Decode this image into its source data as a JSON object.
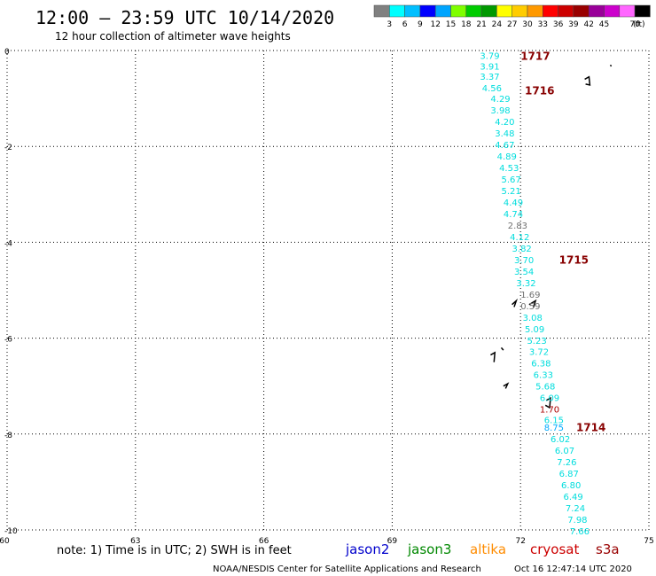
{
  "header": {
    "title": "12:00 – 23:59 UTC 10/14/2020",
    "subtitle": "12 hour collection of altimeter wave heights"
  },
  "legend": {
    "colors": [
      "#808080",
      "#00ffff",
      "#00bfff",
      "#0000ff",
      "#00a5ff",
      "#7fff00",
      "#00cc00",
      "#009900",
      "#ffff00",
      "#ffcc00",
      "#ff9900",
      "#ff0000",
      "#cc0000",
      "#990000",
      "#990099",
      "#cc00cc",
      "#ff66ff",
      "#000000"
    ],
    "labels": [
      "3",
      "6",
      "9",
      "12",
      "15",
      "18",
      "21",
      "24",
      "27",
      "30",
      "33",
      "36",
      "39",
      "42",
      "45",
      "70"
    ],
    "unit": "(ft)"
  },
  "footer": {
    "note": "note: 1) Time is in UTC; 2) SWH is in feet",
    "credit": "NOAA/NESDIS Center for Satellite Applications and Research",
    "timestamp": "Oct 16 12:47:14 UTC 2020",
    "satellites": [
      {
        "name": "jason2",
        "color": "#0000cc"
      },
      {
        "name": "jason3",
        "color": "#008800"
      },
      {
        "name": "altika",
        "color": "#ff8c00"
      },
      {
        "name": "cryosat",
        "color": "#cc0000"
      },
      {
        "name": "s3a",
        "color": "#990000"
      }
    ]
  },
  "chart_data": {
    "type": "scatter",
    "title": "",
    "xlabel": "",
    "ylabel": "",
    "xlim": [
      60,
      75
    ],
    "ylim": [
      -10,
      0
    ],
    "xticks": [
      60,
      63,
      66,
      69,
      72,
      75
    ],
    "yticks": [
      0,
      -2,
      -4,
      -6,
      -8,
      -10
    ],
    "grid": true,
    "time_labels": [
      {
        "text": "1717",
        "x": 72.0,
        "y": -0.1
      },
      {
        "text": "1716",
        "x": 72.1,
        "y": -0.82
      },
      {
        "text": "1715",
        "x": 72.9,
        "y": -4.35
      },
      {
        "text": "1714",
        "x": 73.3,
        "y": -7.85
      }
    ],
    "points": [
      {
        "x": 71.05,
        "y": -0.1,
        "v": "3.79",
        "c": "#00dddd"
      },
      {
        "x": 71.05,
        "y": -0.32,
        "v": "3.91",
        "c": "#00dddd"
      },
      {
        "x": 71.05,
        "y": -0.54,
        "v": "3.37",
        "c": "#00dddd"
      },
      {
        "x": 71.1,
        "y": -0.78,
        "v": "4.56",
        "c": "#00dddd"
      },
      {
        "x": 71.3,
        "y": -1.0,
        "v": "4.29",
        "c": "#00dddd"
      },
      {
        "x": 71.3,
        "y": -1.24,
        "v": "3.98",
        "c": "#00dddd"
      },
      {
        "x": 71.4,
        "y": -1.48,
        "v": "4.20",
        "c": "#00dddd"
      },
      {
        "x": 71.4,
        "y": -1.72,
        "v": "3.48",
        "c": "#00dddd"
      },
      {
        "x": 71.4,
        "y": -1.96,
        "v": "4.67",
        "c": "#00dddd"
      },
      {
        "x": 71.45,
        "y": -2.2,
        "v": "4.89",
        "c": "#00dddd"
      },
      {
        "x": 71.5,
        "y": -2.44,
        "v": "4.53",
        "c": "#00dddd"
      },
      {
        "x": 71.55,
        "y": -2.68,
        "v": "5.67",
        "c": "#00dddd"
      },
      {
        "x": 71.55,
        "y": -2.92,
        "v": "5.21",
        "c": "#00dddd"
      },
      {
        "x": 71.6,
        "y": -3.16,
        "v": "4.49",
        "c": "#00dddd"
      },
      {
        "x": 71.6,
        "y": -3.4,
        "v": "4.74",
        "c": "#00dddd"
      },
      {
        "x": 71.7,
        "y": -3.64,
        "v": "2.83",
        "c": "#707070"
      },
      {
        "x": 71.75,
        "y": -3.88,
        "v": "4.12",
        "c": "#00dddd"
      },
      {
        "x": 71.8,
        "y": -4.12,
        "v": "3.82",
        "c": "#00dddd"
      },
      {
        "x": 71.85,
        "y": -4.36,
        "v": "3.70",
        "c": "#00dddd"
      },
      {
        "x": 71.85,
        "y": -4.6,
        "v": "3.54",
        "c": "#00dddd"
      },
      {
        "x": 71.9,
        "y": -4.84,
        "v": "3.32",
        "c": "#00dddd"
      },
      {
        "x": 72.0,
        "y": -5.08,
        "v": "1.69",
        "c": "#707070"
      },
      {
        "x": 72.0,
        "y": -5.32,
        "v": "0.59",
        "c": "#707070"
      },
      {
        "x": 72.05,
        "y": -5.56,
        "v": "3.08",
        "c": "#00dddd"
      },
      {
        "x": 72.1,
        "y": -5.8,
        "v": "5.09",
        "c": "#00dddd"
      },
      {
        "x": 72.15,
        "y": -6.04,
        "v": "5.23",
        "c": "#00dddd"
      },
      {
        "x": 72.2,
        "y": -6.28,
        "v": "3.72",
        "c": "#00dddd"
      },
      {
        "x": 72.25,
        "y": -6.52,
        "v": "6.38",
        "c": "#00dddd"
      },
      {
        "x": 72.3,
        "y": -6.76,
        "v": "6.33",
        "c": "#00dddd"
      },
      {
        "x": 72.35,
        "y": -7.0,
        "v": "5.68",
        "c": "#00dddd"
      },
      {
        "x": 72.45,
        "y": -7.24,
        "v": "6.09",
        "c": "#00dddd"
      },
      {
        "x": 72.45,
        "y": -7.48,
        "v": "1.70",
        "c": "#aa0000"
      },
      {
        "x": 72.55,
        "y": -7.7,
        "v": "6.15",
        "c": "#00dddd"
      },
      {
        "x": 72.55,
        "y": -7.86,
        "v": "8.75",
        "c": "#00aaff"
      },
      {
        "x": 72.7,
        "y": -8.1,
        "v": "6.02",
        "c": "#00dddd"
      },
      {
        "x": 72.8,
        "y": -8.34,
        "v": "6.07",
        "c": "#00dddd"
      },
      {
        "x": 72.85,
        "y": -8.58,
        "v": "7.26",
        "c": "#00dddd"
      },
      {
        "x": 72.9,
        "y": -8.82,
        "v": "6.87",
        "c": "#00dddd"
      },
      {
        "x": 72.95,
        "y": -9.06,
        "v": "6.80",
        "c": "#00dddd"
      },
      {
        "x": 73.0,
        "y": -9.3,
        "v": "6.49",
        "c": "#00dddd"
      },
      {
        "x": 73.05,
        "y": -9.54,
        "v": "7.24",
        "c": "#00dddd"
      },
      {
        "x": 73.1,
        "y": -9.78,
        "v": "7.98",
        "c": "#00dddd"
      },
      {
        "x": 73.15,
        "y": -10.02,
        "v": "7.66",
        "c": "#00dddd"
      }
    ],
    "islands": [
      [
        [
          71.8,
          -5.3
        ],
        [
          71.9,
          -5.22
        ],
        [
          71.85,
          -5.35
        ]
      ],
      [
        [
          72.2,
          -5.3
        ],
        [
          72.35,
          -5.22
        ],
        [
          72.3,
          -5.36
        ]
      ],
      [
        [
          71.3,
          -6.35
        ],
        [
          71.4,
          -6.3
        ],
        [
          71.38,
          -6.5
        ]
      ],
      [
        [
          71.55,
          -6.2
        ],
        [
          71.6,
          -6.25
        ]
      ],
      [
        [
          71.6,
          -7.0
        ],
        [
          71.7,
          -6.95
        ],
        [
          71.65,
          -7.05
        ]
      ],
      [
        [
          72.6,
          -7.3
        ],
        [
          72.7,
          -7.25
        ],
        [
          72.68,
          -7.45
        ],
        [
          72.58,
          -7.4
        ]
      ],
      [
        [
          73.5,
          -0.6
        ],
        [
          73.6,
          -0.55
        ],
        [
          73.62,
          -0.72
        ],
        [
          73.52,
          -0.7
        ]
      ],
      [
        [
          74.1,
          -0.3
        ],
        [
          74.12,
          -0.33
        ]
      ]
    ]
  }
}
